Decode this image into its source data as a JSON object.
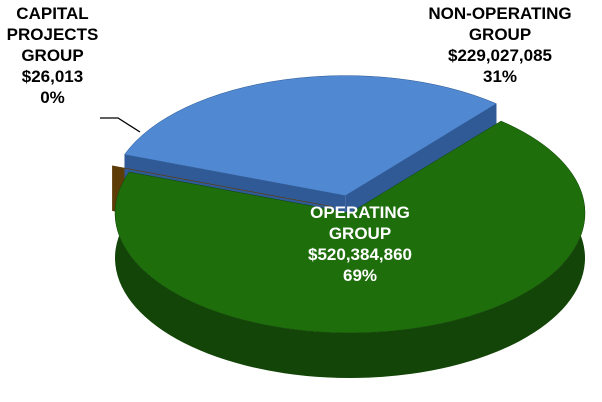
{
  "chart_data": {
    "type": "pie3d",
    "categories": [
      "OPERATING GROUP",
      "CAPITAL PROJECTS GROUP",
      "NON-OPERATING GROUP"
    ],
    "values": [
      520384860,
      26013,
      229027085
    ],
    "value_labels": [
      "$520,384,860",
      "$26,013",
      "$229,027,085"
    ],
    "percents": [
      69,
      0,
      31
    ],
    "percent_labels": [
      "69%",
      "0%",
      "31%"
    ],
    "colors": [
      "#1f6e0c",
      "#8a5a10",
      "#5089d2"
    ],
    "side_colors": [
      "#124507",
      "#5e3c08",
      "#2f5a96"
    ]
  }
}
